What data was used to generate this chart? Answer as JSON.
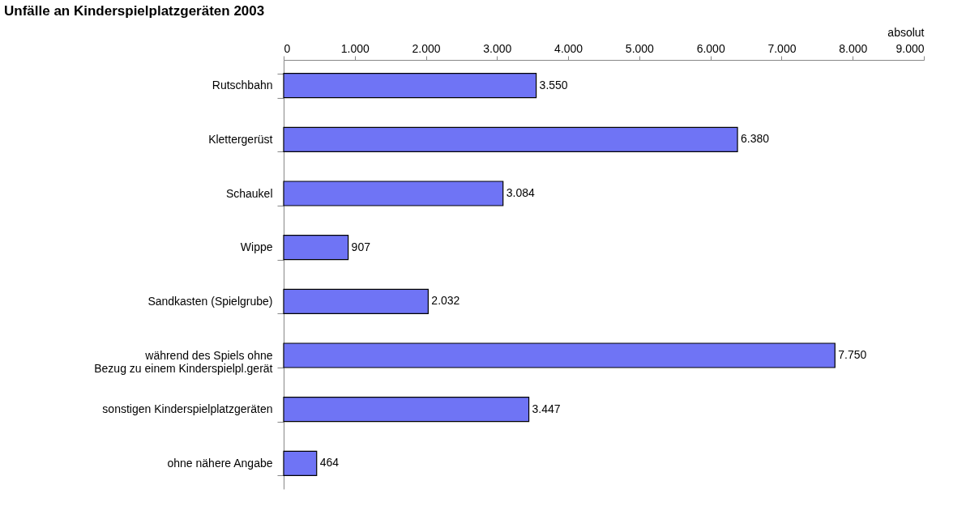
{
  "chart_data": {
    "type": "bar",
    "orientation": "horizontal",
    "title": "Unfälle an Kinderspielplatzgeräten 2003",
    "xlabel": "absolut",
    "categories": [
      "Rutschbahn",
      "Klettergerüst",
      "Schaukel",
      "Wippe",
      "Sandkasten (Spielgrube)",
      "während des Spiels ohne\nBezug zu einem Kinderspielpl.gerät",
      "sonstigen Kinderspielplatzgeräten",
      "ohne nähere Angabe"
    ],
    "values": [
      3550,
      6380,
      3084,
      907,
      2032,
      7750,
      3447,
      464
    ],
    "value_labels": [
      "3.550",
      "6.380",
      "3.084",
      "907",
      "2.032",
      "7.750",
      "3.447",
      "464"
    ],
    "color": "#6f74f5",
    "xlim": [
      0,
      9000
    ],
    "xticks": [
      0,
      {
        "value": 1000,
        "label": "1.000"
      },
      {
        "value": 2000,
        "label": "2.000"
      },
      {
        "value": 3000,
        "label": "3.000"
      },
      {
        "value": 4000,
        "label": "4.000"
      },
      {
        "value": 5000,
        "label": "5.000"
      },
      {
        "value": 6000,
        "label": "6.000"
      },
      {
        "value": 7000,
        "label": "7.000"
      },
      {
        "value": 8000,
        "label": "8.000"
      },
      {
        "value": 9000,
        "label": "9.000"
      }
    ]
  }
}
